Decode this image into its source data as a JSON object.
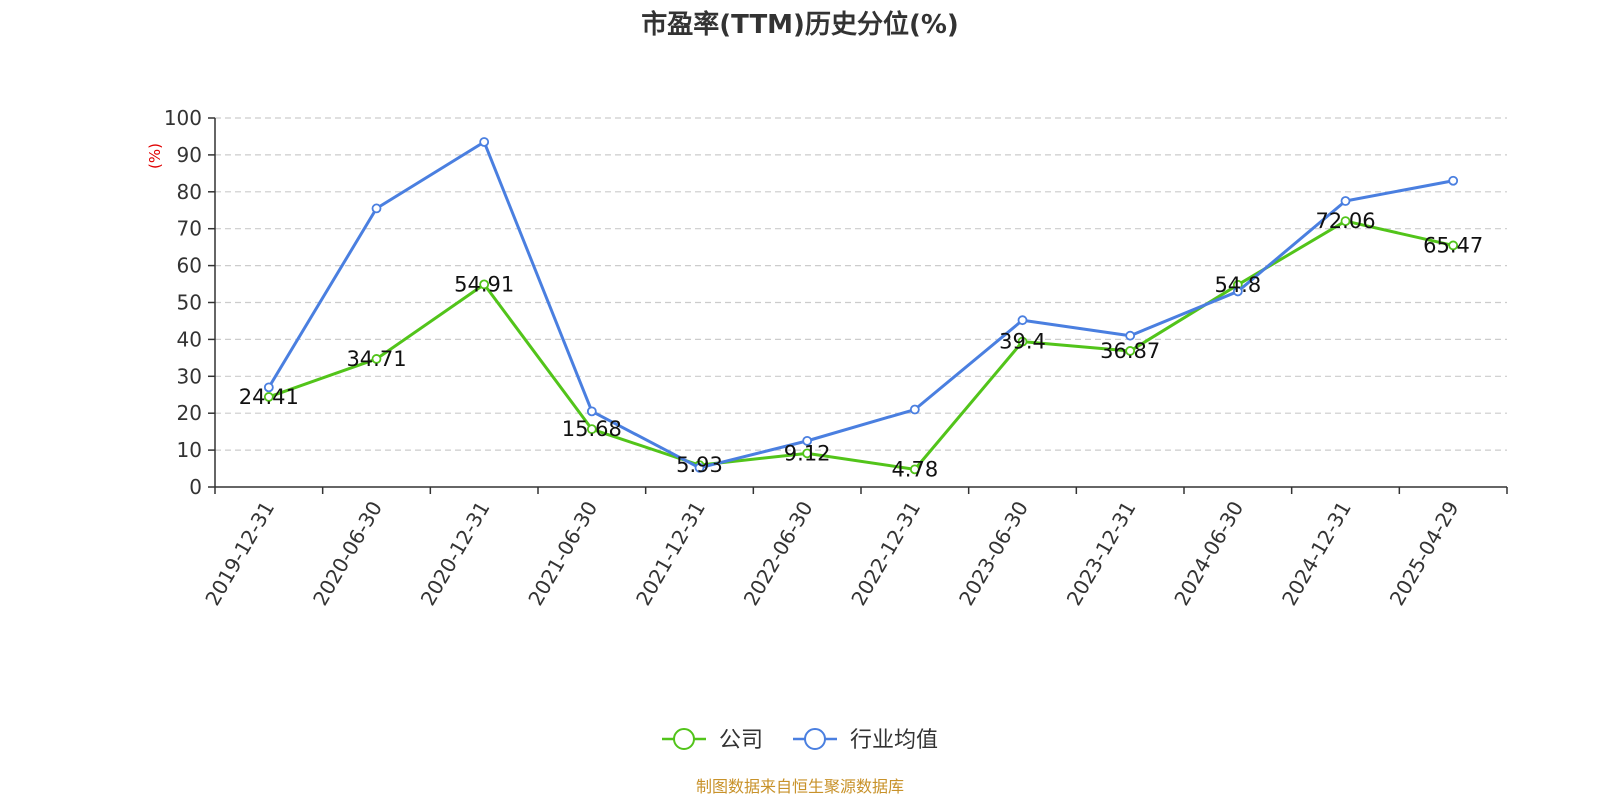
{
  "chart_data": {
    "type": "line",
    "title": "市盈率(TTM)历史分位(%)",
    "ylabel": "(%)",
    "xlabel": "",
    "ylim": [
      0,
      100
    ],
    "yticks": [
      0,
      10,
      20,
      30,
      40,
      50,
      60,
      70,
      80,
      90,
      100
    ],
    "categories": [
      "2019-12-31",
      "2020-06-30",
      "2020-12-31",
      "2021-06-30",
      "2021-12-31",
      "2022-06-30",
      "2022-12-31",
      "2023-06-30",
      "2023-12-31",
      "2024-06-30",
      "2024-12-31",
      "2025-04-29"
    ],
    "grid": true,
    "legend_position": "bottom",
    "series": [
      {
        "name": "公司",
        "color": "#52C41A",
        "values": [
          24.41,
          34.71,
          54.91,
          15.68,
          5.93,
          9.12,
          4.78,
          39.4,
          36.87,
          54.8,
          72.06,
          65.47
        ],
        "labels": [
          "24.41",
          "34.71",
          "54.91",
          "15.68",
          "5.93",
          "9.12",
          "4.78",
          "39.4",
          "36.87",
          "54.8",
          "72.06",
          "65.47"
        ]
      },
      {
        "name": "行业均值",
        "color": "#4A7FE0",
        "values": [
          27,
          75.5,
          93.5,
          20.5,
          5.2,
          12.5,
          21,
          45.2,
          41,
          53,
          77.5,
          83
        ]
      }
    ],
    "source": "制图数据来自恒生聚源数据库",
    "source_color": "#C8922A",
    "ylabel_color": "#E00000"
  }
}
